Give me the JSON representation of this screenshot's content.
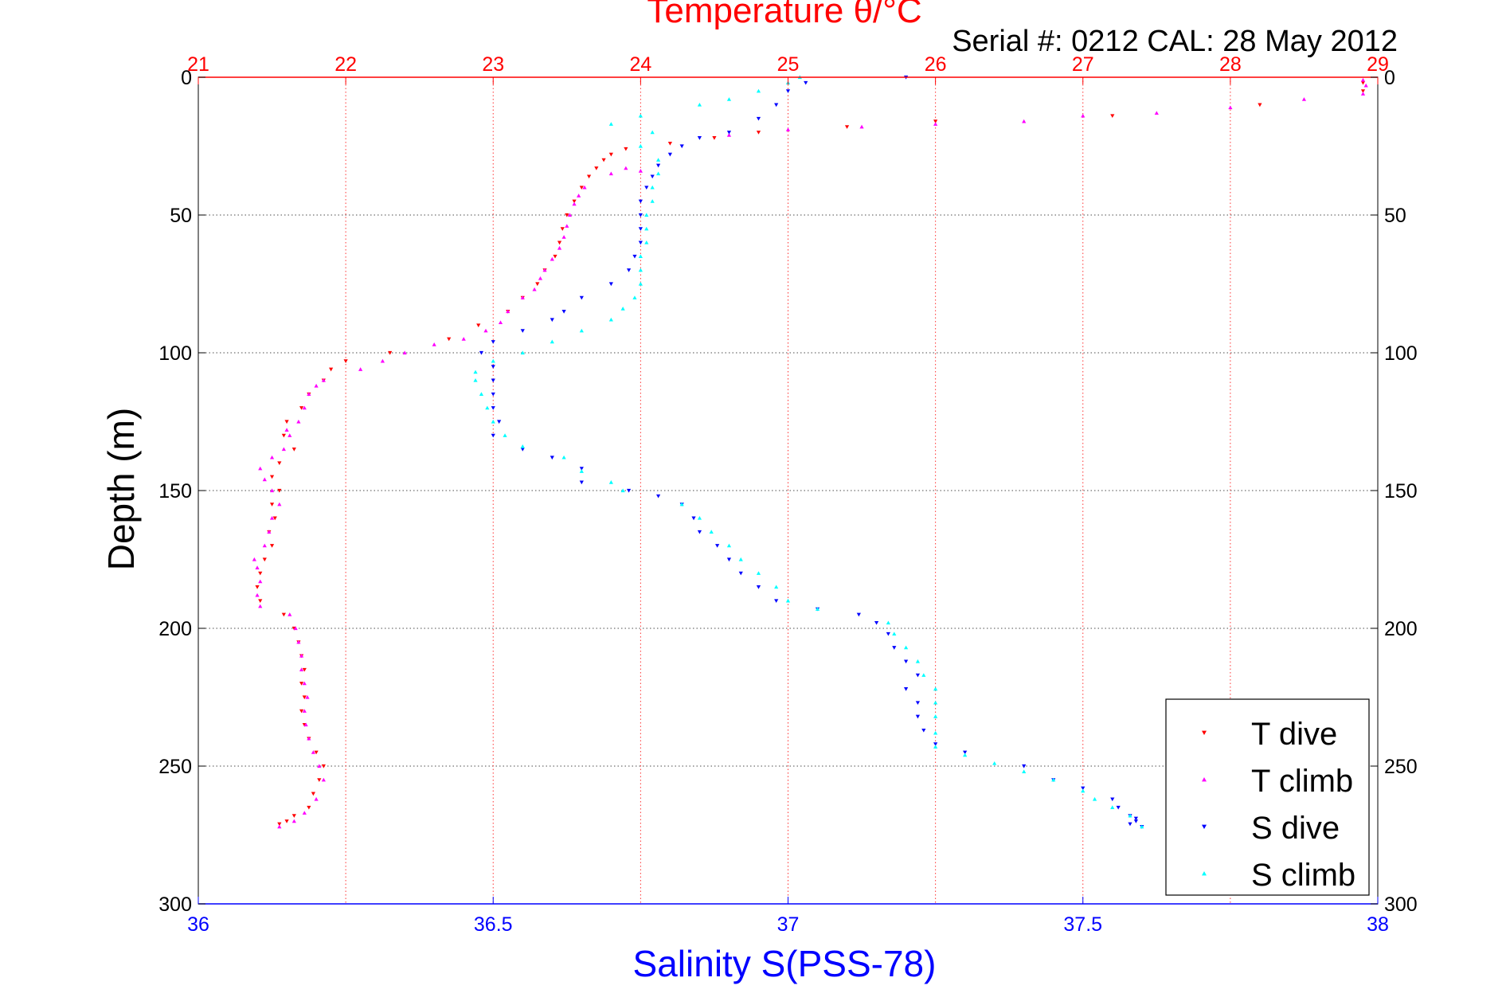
{
  "chart_data": {
    "type": "scatter",
    "title": "Temperature θ/°C",
    "subtitle": "Serial #: 0212  CAL: 28 May 2012",
    "ylabel": "Depth (m)",
    "xlabel_bottom": "Salinity S(PSS-78)",
    "ylim": [
      0,
      300
    ],
    "y_reversed": true,
    "xlim_bottom": [
      36,
      38
    ],
    "xlim_top": [
      21,
      29
    ],
    "y_ticks": [
      "0",
      "50",
      "100",
      "150",
      "200",
      "250",
      "300"
    ],
    "x_ticks_bottom": [
      "36",
      "36.5",
      "37",
      "37.5",
      "38"
    ],
    "x_ticks_top": [
      "21",
      "22",
      "23",
      "24",
      "25",
      "26",
      "27",
      "28",
      "29"
    ],
    "grid": true,
    "legend_position": "bottom-right",
    "colors": {
      "temperature_axis": "#ff0000",
      "salinity_axis": "#0000ff"
    },
    "series": [
      {
        "name": "T dive",
        "axis": "top",
        "color": "#ff0000",
        "marker": "triangle-down",
        "points": [
          [
            28.9,
            2
          ],
          [
            28.9,
            5
          ],
          [
            28.2,
            10
          ],
          [
            27.2,
            14
          ],
          [
            26.0,
            16
          ],
          [
            25.4,
            18
          ],
          [
            24.8,
            20
          ],
          [
            24.5,
            22
          ],
          [
            24.2,
            24
          ],
          [
            23.9,
            26
          ],
          [
            23.8,
            28
          ],
          [
            23.75,
            30
          ],
          [
            23.7,
            33
          ],
          [
            23.65,
            36
          ],
          [
            23.6,
            40
          ],
          [
            23.55,
            45
          ],
          [
            23.5,
            50
          ],
          [
            23.47,
            55
          ],
          [
            23.45,
            60
          ],
          [
            23.42,
            65
          ],
          [
            23.35,
            70
          ],
          [
            23.3,
            75
          ],
          [
            23.2,
            80
          ],
          [
            23.1,
            85
          ],
          [
            22.9,
            90
          ],
          [
            22.7,
            95
          ],
          [
            22.3,
            100
          ],
          [
            22.0,
            103
          ],
          [
            21.9,
            106
          ],
          [
            21.85,
            110
          ],
          [
            21.75,
            115
          ],
          [
            21.7,
            120
          ],
          [
            21.6,
            125
          ],
          [
            21.58,
            130
          ],
          [
            21.65,
            135
          ],
          [
            21.55,
            140
          ],
          [
            21.5,
            145
          ],
          [
            21.55,
            150
          ],
          [
            21.5,
            155
          ],
          [
            21.52,
            160
          ],
          [
            21.48,
            165
          ],
          [
            21.5,
            170
          ],
          [
            21.45,
            175
          ],
          [
            21.42,
            180
          ],
          [
            21.4,
            185
          ],
          [
            21.42,
            190
          ],
          [
            21.58,
            195
          ],
          [
            21.65,
            200
          ],
          [
            21.68,
            205
          ],
          [
            21.7,
            210
          ],
          [
            21.72,
            215
          ],
          [
            21.7,
            220
          ],
          [
            21.72,
            225
          ],
          [
            21.7,
            230
          ],
          [
            21.72,
            235
          ],
          [
            21.75,
            240
          ],
          [
            21.8,
            245
          ],
          [
            21.85,
            250
          ],
          [
            21.82,
            255
          ],
          [
            21.78,
            260
          ],
          [
            21.75,
            265
          ],
          [
            21.65,
            268
          ],
          [
            21.6,
            270
          ],
          [
            21.55,
            271
          ]
        ]
      },
      {
        "name": "T climb",
        "axis": "top",
        "color": "#ff00ff",
        "marker": "triangle-up",
        "points": [
          [
            21.55,
            272
          ],
          [
            21.65,
            270
          ],
          [
            21.72,
            267
          ],
          [
            21.8,
            262
          ],
          [
            21.85,
            255
          ],
          [
            21.82,
            250
          ],
          [
            21.78,
            245
          ],
          [
            21.75,
            240
          ],
          [
            21.73,
            235
          ],
          [
            21.72,
            230
          ],
          [
            21.74,
            225
          ],
          [
            21.72,
            220
          ],
          [
            21.7,
            215
          ],
          [
            21.7,
            210
          ],
          [
            21.68,
            205
          ],
          [
            21.66,
            200
          ],
          [
            21.62,
            195
          ],
          [
            21.42,
            192
          ],
          [
            21.4,
            188
          ],
          [
            21.42,
            183
          ],
          [
            21.4,
            178
          ],
          [
            21.38,
            175
          ],
          [
            21.45,
            170
          ],
          [
            21.48,
            165
          ],
          [
            21.5,
            160
          ],
          [
            21.55,
            155
          ],
          [
            21.5,
            150
          ],
          [
            21.45,
            146
          ],
          [
            21.42,
            142
          ],
          [
            21.5,
            138
          ],
          [
            21.58,
            135
          ],
          [
            21.62,
            130
          ],
          [
            21.6,
            128
          ],
          [
            21.68,
            125
          ],
          [
            21.72,
            120
          ],
          [
            21.75,
            115
          ],
          [
            21.8,
            112
          ],
          [
            21.85,
            110
          ],
          [
            22.1,
            106
          ],
          [
            22.25,
            103
          ],
          [
            22.4,
            100
          ],
          [
            22.6,
            97
          ],
          [
            22.8,
            95
          ],
          [
            22.95,
            92
          ],
          [
            23.05,
            89
          ],
          [
            23.1,
            85
          ],
          [
            23.2,
            80
          ],
          [
            23.28,
            77
          ],
          [
            23.32,
            73
          ],
          [
            23.35,
            70
          ],
          [
            23.4,
            66
          ],
          [
            23.45,
            62
          ],
          [
            23.48,
            58
          ],
          [
            23.5,
            54
          ],
          [
            23.52,
            50
          ],
          [
            23.55,
            46
          ],
          [
            23.58,
            43
          ],
          [
            23.62,
            40
          ],
          [
            23.8,
            35
          ],
          [
            24.0,
            34
          ],
          [
            23.9,
            33
          ],
          [
            24.6,
            21
          ],
          [
            25.0,
            19
          ],
          [
            25.5,
            18
          ],
          [
            26.0,
            17
          ],
          [
            26.6,
            16
          ],
          [
            27.0,
            14
          ],
          [
            27.5,
            13
          ],
          [
            28.0,
            11
          ],
          [
            28.5,
            8
          ],
          [
            28.9,
            6
          ],
          [
            28.92,
            3
          ],
          [
            28.9,
            1
          ]
        ]
      },
      {
        "name": "S dive",
        "axis": "bottom",
        "color": "#0000ff",
        "marker": "triangle-down",
        "points": [
          [
            37.2,
            0
          ],
          [
            37.03,
            2
          ],
          [
            37.0,
            5
          ],
          [
            36.98,
            10
          ],
          [
            36.95,
            15
          ],
          [
            36.9,
            20
          ],
          [
            36.85,
            22
          ],
          [
            36.82,
            25
          ],
          [
            36.8,
            28
          ],
          [
            36.78,
            32
          ],
          [
            36.77,
            36
          ],
          [
            36.76,
            40
          ],
          [
            36.75,
            45
          ],
          [
            36.75,
            50
          ],
          [
            36.75,
            55
          ],
          [
            36.75,
            60
          ],
          [
            36.74,
            65
          ],
          [
            36.73,
            70
          ],
          [
            36.7,
            75
          ],
          [
            36.65,
            80
          ],
          [
            36.62,
            85
          ],
          [
            36.6,
            88
          ],
          [
            36.55,
            92
          ],
          [
            36.5,
            96
          ],
          [
            36.48,
            100
          ],
          [
            36.5,
            105
          ],
          [
            36.5,
            110
          ],
          [
            36.5,
            115
          ],
          [
            36.5,
            120
          ],
          [
            36.51,
            125
          ],
          [
            36.5,
            130
          ],
          [
            36.55,
            135
          ],
          [
            36.6,
            138
          ],
          [
            36.65,
            142
          ],
          [
            36.65,
            147
          ],
          [
            36.73,
            150
          ],
          [
            36.78,
            152
          ],
          [
            36.82,
            155
          ],
          [
            36.84,
            160
          ],
          [
            36.85,
            165
          ],
          [
            36.88,
            170
          ],
          [
            36.9,
            175
          ],
          [
            36.92,
            180
          ],
          [
            36.95,
            185
          ],
          [
            36.98,
            190
          ],
          [
            37.05,
            193
          ],
          [
            37.12,
            195
          ],
          [
            37.15,
            198
          ],
          [
            37.17,
            202
          ],
          [
            37.18,
            207
          ],
          [
            37.2,
            212
          ],
          [
            37.22,
            217
          ],
          [
            37.2,
            222
          ],
          [
            37.22,
            227
          ],
          [
            37.22,
            232
          ],
          [
            37.23,
            237
          ],
          [
            37.25,
            242
          ],
          [
            37.3,
            245
          ],
          [
            37.4,
            250
          ],
          [
            37.45,
            255
          ],
          [
            37.5,
            258
          ],
          [
            37.55,
            262
          ],
          [
            37.56,
            265
          ],
          [
            37.58,
            268
          ],
          [
            37.59,
            270
          ],
          [
            37.6,
            272
          ],
          [
            37.58,
            271
          ],
          [
            37.59,
            269
          ]
        ]
      },
      {
        "name": "S climb",
        "axis": "bottom",
        "color": "#00ffff",
        "marker": "triangle-up",
        "points": [
          [
            37.6,
            272
          ],
          [
            37.58,
            268
          ],
          [
            37.55,
            265
          ],
          [
            37.52,
            262
          ],
          [
            37.5,
            259
          ],
          [
            37.45,
            255
          ],
          [
            37.4,
            252
          ],
          [
            37.35,
            249
          ],
          [
            37.3,
            246
          ],
          [
            37.25,
            243
          ],
          [
            37.25,
            238
          ],
          [
            37.25,
            232
          ],
          [
            37.25,
            227
          ],
          [
            37.25,
            222
          ],
          [
            37.23,
            217
          ],
          [
            37.22,
            212
          ],
          [
            37.2,
            207
          ],
          [
            37.18,
            202
          ],
          [
            37.17,
            198
          ],
          [
            37.05,
            193
          ],
          [
            37.0,
            190
          ],
          [
            36.98,
            185
          ],
          [
            36.95,
            180
          ],
          [
            36.92,
            175
          ],
          [
            36.9,
            170
          ],
          [
            36.87,
            165
          ],
          [
            36.85,
            160
          ],
          [
            36.82,
            155
          ],
          [
            36.72,
            150
          ],
          [
            36.7,
            147
          ],
          [
            36.65,
            143
          ],
          [
            36.62,
            138
          ],
          [
            36.55,
            134
          ],
          [
            36.52,
            130
          ],
          [
            36.5,
            125
          ],
          [
            36.49,
            120
          ],
          [
            36.48,
            115
          ],
          [
            36.47,
            110
          ],
          [
            36.47,
            107
          ],
          [
            36.5,
            103
          ],
          [
            36.55,
            100
          ],
          [
            36.6,
            96
          ],
          [
            36.65,
            92
          ],
          [
            36.7,
            88
          ],
          [
            36.72,
            84
          ],
          [
            36.74,
            80
          ],
          [
            36.75,
            75
          ],
          [
            36.75,
            70
          ],
          [
            36.75,
            65
          ],
          [
            36.76,
            60
          ],
          [
            36.76,
            55
          ],
          [
            36.76,
            50
          ],
          [
            36.77,
            45
          ],
          [
            36.77,
            40
          ],
          [
            36.78,
            35
          ],
          [
            36.78,
            30
          ],
          [
            36.75,
            25
          ],
          [
            36.77,
            20
          ],
          [
            36.7,
            17
          ],
          [
            36.75,
            14
          ],
          [
            36.85,
            10
          ],
          [
            36.9,
            8
          ],
          [
            36.95,
            5
          ],
          [
            37.0,
            2
          ],
          [
            37.02,
            0
          ]
        ]
      }
    ]
  }
}
